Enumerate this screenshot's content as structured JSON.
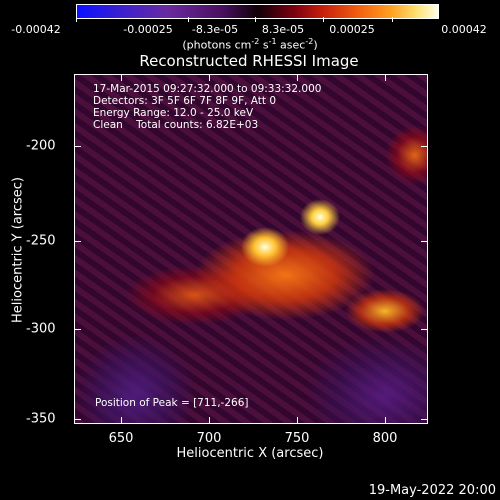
{
  "colorbar": {
    "ticks": [
      "-0.00042",
      "-0.00025",
      "-8.3e-05",
      "8.3e-05",
      "0.00025",
      "0.00042"
    ],
    "units_prefix": "(photons cm",
    "units_exp1": "-2",
    "units_mid": " s",
    "units_exp2": "-1",
    "units_mid2": " asec",
    "units_exp3": "-2",
    "units_suffix": ")"
  },
  "title": "Reconstructed RHESSI Image",
  "info": {
    "time": "17-Mar-2015 09:27:32.000 to 09:33:32.000",
    "detectors": "Detectors: 3F 5F 6F 7F 8F 9F, Att 0",
    "energy": "Energy Range: 12.0 - 25.0 keV",
    "clean": "Clean    Total counts: 6.82E+03",
    "peak": "Position of Peak = [711,-266]"
  },
  "axes": {
    "xlabel": "Heliocentric X (arcsec)",
    "ylabel": "Heliocentric Y (arcsec)",
    "xticks": [
      "650",
      "700",
      "750",
      "800"
    ],
    "yticks": [
      "-200",
      "-250",
      "-300",
      "-350"
    ]
  },
  "footer_date": "19-May-2022 20:00",
  "colors": {
    "background": "#000000",
    "text": "#ffffff"
  }
}
